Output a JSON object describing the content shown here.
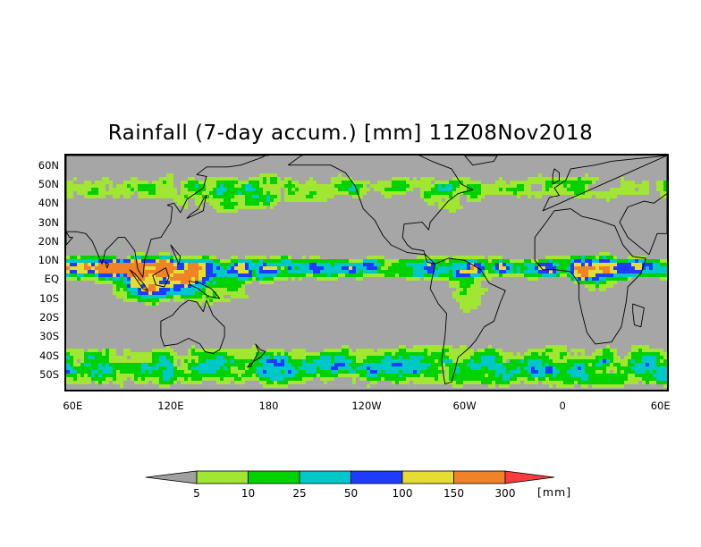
{
  "title": "Rainfall (7-day accum.) [mm] 11Z08Nov2018",
  "lat_labels": [
    "60N",
    "50N",
    "40N",
    "30N",
    "20N",
    "10N",
    "EQ",
    "10S",
    "20S",
    "30S",
    "40S",
    "50S"
  ],
  "lat_values": [
    60,
    50,
    40,
    30,
    20,
    10,
    0,
    -10,
    -20,
    -30,
    -40,
    -50
  ],
  "lon_labels": [
    "60E",
    "120E",
    "180",
    "120W",
    "60W",
    "0",
    "60E"
  ],
  "lon_values": [
    60,
    120,
    180,
    240,
    300,
    360,
    420
  ],
  "lat_range": [
    -58,
    65
  ],
  "lon_range": [
    56,
    424
  ],
  "colors": {
    "land": "#a6a6a6",
    "ocean_dry": "#a6a6a6",
    "coast": "#000000",
    "lt5": "#a0a0a0",
    "c5_10": "#a0e632",
    "c10_25": "#00d200",
    "c25_50": "#00c8c8",
    "c50_100": "#1e3cff",
    "c100_150": "#e6dc32",
    "c150_300": "#f08228",
    "gt300": "#fa3c3c"
  },
  "colorbar": {
    "ticks": [
      "5",
      "10",
      "25",
      "50",
      "100",
      "150",
      "300"
    ],
    "unit": "[mm]",
    "colors": [
      "#a0a0a0",
      "#a0e632",
      "#00d200",
      "#00c8c8",
      "#1e3cff",
      "#e6dc32",
      "#f08228",
      "#fa3c3c"
    ]
  }
}
